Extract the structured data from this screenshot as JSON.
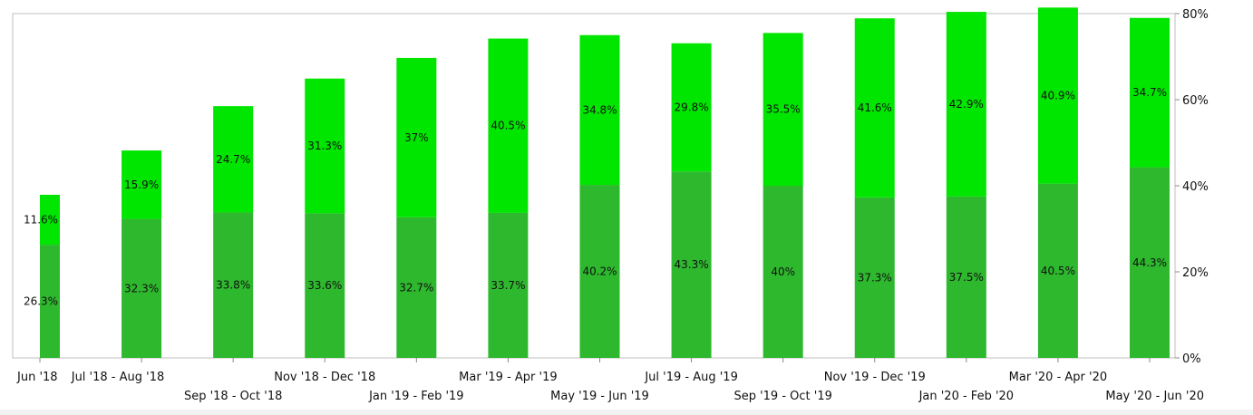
{
  "chart_data": {
    "type": "bar",
    "stacked": true,
    "title": "",
    "xlabel": "",
    "ylabel": "",
    "ylim": [
      0,
      80
    ],
    "y_axis_position": "right",
    "y_ticks": [
      "0%",
      "20%",
      "40%",
      "60%",
      "80%"
    ],
    "categories": [
      "Jun '18",
      "Jul '18 - Aug '18",
      "Sep '18 - Oct '18",
      "Nov '18 - Dec '18",
      "Jan '19 - Feb '19",
      "Mar '19 - Apr '19",
      "May '19 - Jun '19",
      "Jul '19 - Aug '19",
      "Sep '19 - Oct '19",
      "Nov '19 - Dec '19",
      "Jan '20 - Feb '20",
      "Mar '20 - Apr '20",
      "May '20 - Jun '20"
    ],
    "series": [
      {
        "color": "#2eb82e",
        "values": [
          26.3,
          32.3,
          33.8,
          33.6,
          32.7,
          33.7,
          40.2,
          43.3,
          40,
          37.3,
          37.5,
          40.5,
          44.3
        ],
        "labels": [
          "26.3%",
          "32.3%",
          "33.8%",
          "33.6%",
          "32.7%",
          "33.7%",
          "40.2%",
          "43.3%",
          "40%",
          "37.3%",
          "37.5%",
          "40.5%",
          "44.3%"
        ]
      },
      {
        "color": "#00e600",
        "values": [
          11.6,
          15.9,
          24.7,
          31.3,
          37,
          40.5,
          34.8,
          29.8,
          35.5,
          41.6,
          42.9,
          40.9,
          34.7
        ],
        "labels": [
          "11.6%",
          "15.9%",
          "24.7%",
          "31.3%",
          "37%",
          "40.5%",
          "34.8%",
          "29.8%",
          "35.5%",
          "41.6%",
          "42.9%",
          "40.9%",
          "34.7%"
        ]
      }
    ],
    "grid": false,
    "legend": "none"
  }
}
